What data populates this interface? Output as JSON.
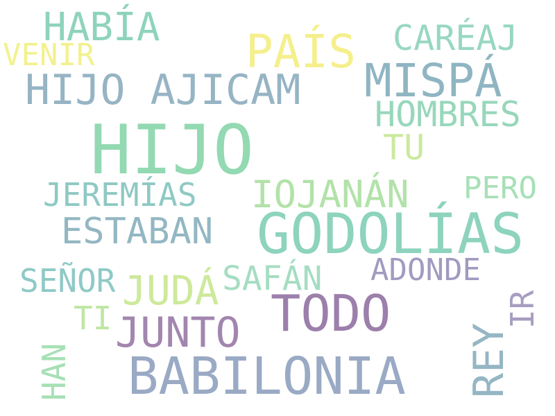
{
  "colors": {
    "teal": "#8ed3bd",
    "yellow": "#f4ef8e",
    "steel": "#93b3c1",
    "green": "#95dbb4",
    "lime": "#c9e89e",
    "mint": "#a5e0b5",
    "purple": "#9e80aa",
    "lavender": "#9f97bd",
    "blueGrey": "#98a9c6",
    "seafoam": "#8ccdbe"
  },
  "words": [
    {
      "id": "w-habia",
      "text": "HABÍA",
      "color": "#8ed3bd"
    },
    {
      "id": "w-caréaj",
      "text": "CARÉAJ",
      "color": "#98d7c2"
    },
    {
      "id": "w-pais",
      "text": "PAÍS",
      "color": "#f5ef8c"
    },
    {
      "id": "w-venir",
      "text": "VENIR",
      "color": "#f2f18e"
    },
    {
      "id": "w-mispa",
      "text": "MISPÁ",
      "color": "#8fb5c2"
    },
    {
      "id": "w-hijoajic",
      "text": "HIJO AJICAM",
      "color": "#96b4c4"
    },
    {
      "id": "w-hombres",
      "text": "HOMBRES",
      "color": "#97d7bb"
    },
    {
      "id": "w-hijo",
      "text": "HIJO",
      "color": "#93d9b2"
    },
    {
      "id": "w-tu",
      "text": "TU",
      "color": "#cbe9a0"
    },
    {
      "id": "w-pero",
      "text": "PERO",
      "color": "#a7e0b6"
    },
    {
      "id": "w-jeremias",
      "text": "JEREMÍAS",
      "color": "#8fc9c3"
    },
    {
      "id": "w-iojanan",
      "text": "IOJANÁN",
      "color": "#b2e2a9"
    },
    {
      "id": "w-estaban",
      "text": "ESTABAN",
      "color": "#93b7c3"
    },
    {
      "id": "w-godolias",
      "text": "GODOLÍAS",
      "color": "#8dd3bd"
    },
    {
      "id": "w-adonde",
      "text": "ADONDE",
      "color": "#a09bc0"
    },
    {
      "id": "w-senor",
      "text": "SEÑOR",
      "color": "#8fc9c6"
    },
    {
      "id": "w-safan",
      "text": "SAFÁN",
      "color": "#a5ddc2"
    },
    {
      "id": "w-juda",
      "text": "JUDÁ",
      "color": "#cde99b"
    },
    {
      "id": "w-ti",
      "text": "TI",
      "color": "#bfe6a3"
    },
    {
      "id": "w-todo",
      "text": "TODO",
      "color": "#9c7fab"
    },
    {
      "id": "w-junto",
      "text": "JUNTO",
      "color": "#a286ae"
    },
    {
      "id": "w-babilonia",
      "text": "BABILONIA",
      "color": "#9aaac5"
    },
    {
      "id": "w-han",
      "text": "HAN",
      "color": "#a6e0b5"
    },
    {
      "id": "w-rey",
      "text": "REY",
      "color": "#95b6c4"
    },
    {
      "id": "w-ir",
      "text": "IR",
      "color": "#a79dc0"
    }
  ]
}
